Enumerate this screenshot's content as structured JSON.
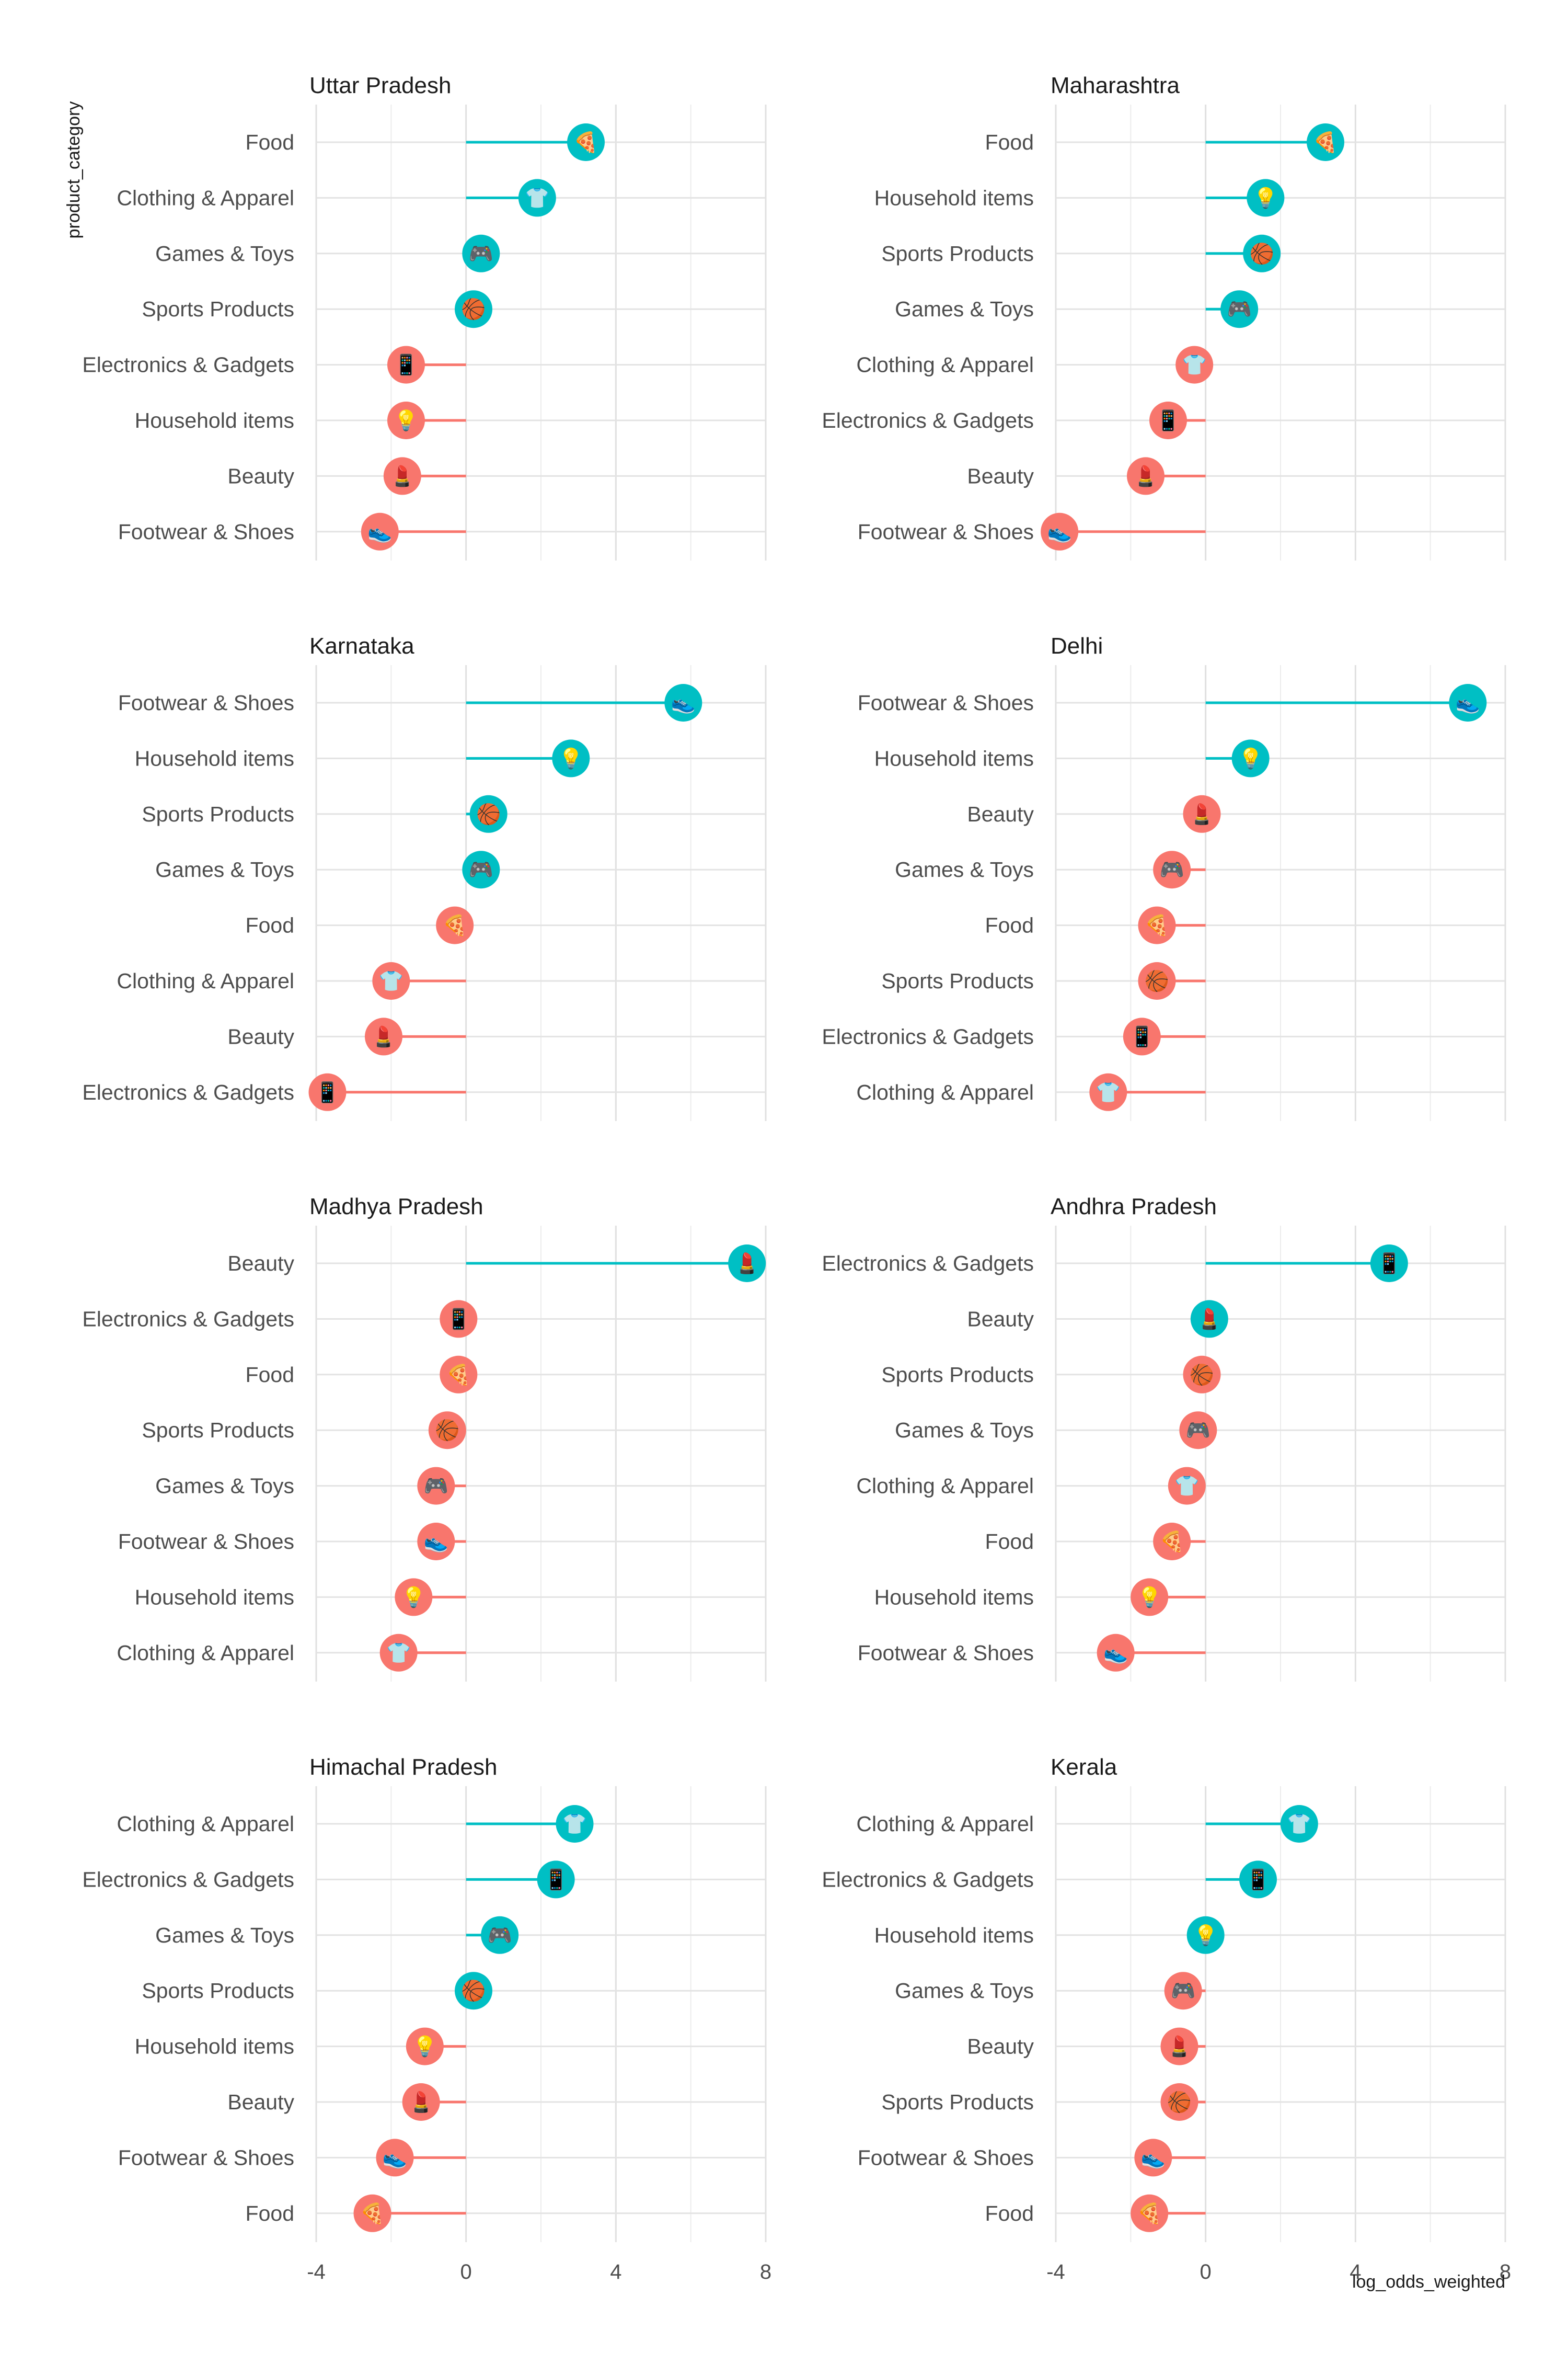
{
  "chart_data": {
    "type": "lollipop",
    "xlabel": "log_odds_weighted",
    "ylabel": "product_category",
    "xlim": [
      -4,
      8
    ],
    "x_ticks": [
      -4,
      0,
      4,
      8
    ],
    "grid": true,
    "colors": {
      "positive": "#00BFC4",
      "negative": "#F8766D",
      "grid": "#e3e3e3"
    },
    "category_icons": {
      "Food": "🍕",
      "Clothing & Apparel": "👕",
      "Games & Toys": "🎮",
      "Sports Products": "🏀",
      "Electronics & Gadgets": "📱",
      "Household items": "💡",
      "Beauty": "💄",
      "Footwear & Shoes": "👟"
    },
    "panels": [
      {
        "title": "Uttar Pradesh",
        "items": [
          {
            "category": "Food",
            "value": 3.2
          },
          {
            "category": "Clothing & Apparel",
            "value": 1.9
          },
          {
            "category": "Games & Toys",
            "value": 0.4
          },
          {
            "category": "Sports Products",
            "value": 0.2
          },
          {
            "category": "Electronics & Gadgets",
            "value": -1.6
          },
          {
            "category": "Household items",
            "value": -1.6
          },
          {
            "category": "Beauty",
            "value": -1.7
          },
          {
            "category": "Footwear & Shoes",
            "value": -2.3
          }
        ]
      },
      {
        "title": "Maharashtra",
        "items": [
          {
            "category": "Food",
            "value": 3.2
          },
          {
            "category": "Household items",
            "value": 1.6
          },
          {
            "category": "Sports Products",
            "value": 1.5
          },
          {
            "category": "Games & Toys",
            "value": 0.9
          },
          {
            "category": "Clothing & Apparel",
            "value": -0.3
          },
          {
            "category": "Electronics & Gadgets",
            "value": -1.0
          },
          {
            "category": "Beauty",
            "value": -1.6
          },
          {
            "category": "Footwear & Shoes",
            "value": -3.9
          }
        ]
      },
      {
        "title": "Karnataka",
        "items": [
          {
            "category": "Footwear & Shoes",
            "value": 5.8
          },
          {
            "category": "Household items",
            "value": 2.8
          },
          {
            "category": "Sports Products",
            "value": 0.6
          },
          {
            "category": "Games & Toys",
            "value": 0.4
          },
          {
            "category": "Food",
            "value": -0.3
          },
          {
            "category": "Clothing & Apparel",
            "value": -2.0
          },
          {
            "category": "Beauty",
            "value": -2.2
          },
          {
            "category": "Electronics & Gadgets",
            "value": -3.7
          }
        ]
      },
      {
        "title": "Delhi",
        "items": [
          {
            "category": "Footwear & Shoes",
            "value": 7.0
          },
          {
            "category": "Household items",
            "value": 1.2
          },
          {
            "category": "Beauty",
            "value": -0.1
          },
          {
            "category": "Games & Toys",
            "value": -0.9
          },
          {
            "category": "Food",
            "value": -1.3
          },
          {
            "category": "Sports Products",
            "value": -1.3
          },
          {
            "category": "Electronics & Gadgets",
            "value": -1.7
          },
          {
            "category": "Clothing & Apparel",
            "value": -2.6
          }
        ]
      },
      {
        "title": "Madhya Pradesh",
        "items": [
          {
            "category": "Beauty",
            "value": 7.5
          },
          {
            "category": "Electronics & Gadgets",
            "value": -0.2
          },
          {
            "category": "Food",
            "value": -0.2
          },
          {
            "category": "Sports Products",
            "value": -0.5
          },
          {
            "category": "Games & Toys",
            "value": -0.8
          },
          {
            "category": "Footwear & Shoes",
            "value": -0.8
          },
          {
            "category": "Household items",
            "value": -1.4
          },
          {
            "category": "Clothing & Apparel",
            "value": -1.8
          }
        ]
      },
      {
        "title": "Andhra Pradesh",
        "items": [
          {
            "category": "Electronics & Gadgets",
            "value": 4.9
          },
          {
            "category": "Beauty",
            "value": 0.1
          },
          {
            "category": "Sports Products",
            "value": -0.1
          },
          {
            "category": "Games & Toys",
            "value": -0.2
          },
          {
            "category": "Clothing & Apparel",
            "value": -0.5
          },
          {
            "category": "Food",
            "value": -0.9
          },
          {
            "category": "Household items",
            "value": -1.5
          },
          {
            "category": "Footwear & Shoes",
            "value": -2.4
          }
        ]
      },
      {
        "title": "Himachal Pradesh",
        "items": [
          {
            "category": "Clothing & Apparel",
            "value": 2.9
          },
          {
            "category": "Electronics & Gadgets",
            "value": 2.4
          },
          {
            "category": "Games & Toys",
            "value": 0.9
          },
          {
            "category": "Sports Products",
            "value": 0.2
          },
          {
            "category": "Household items",
            "value": -1.1
          },
          {
            "category": "Beauty",
            "value": -1.2
          },
          {
            "category": "Footwear & Shoes",
            "value": -1.9
          },
          {
            "category": "Food",
            "value": -2.5
          }
        ]
      },
      {
        "title": "Kerala",
        "items": [
          {
            "category": "Clothing & Apparel",
            "value": 2.5
          },
          {
            "category": "Electronics & Gadgets",
            "value": 1.4
          },
          {
            "category": "Household items",
            "value": 0.0
          },
          {
            "category": "Games & Toys",
            "value": -0.6
          },
          {
            "category": "Beauty",
            "value": -0.7
          },
          {
            "category": "Sports Products",
            "value": -0.7
          },
          {
            "category": "Footwear & Shoes",
            "value": -1.4
          },
          {
            "category": "Food",
            "value": -1.5
          }
        ]
      }
    ]
  }
}
